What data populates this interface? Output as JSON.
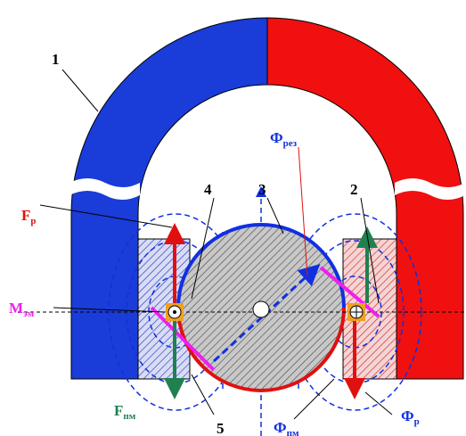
{
  "labels": [
    {
      "main": "1"
    },
    {
      "main": "2"
    },
    {
      "main": "3"
    },
    {
      "main": "4"
    },
    {
      "main": "5"
    },
    {
      "main": "F",
      "sub": "р"
    },
    {
      "main": "Ф",
      "sub": "рез"
    },
    {
      "main": "М",
      "sub": "эм"
    },
    {
      "main": "F",
      "sub": "пм"
    },
    {
      "main": "Ф",
      "sub": "пм"
    },
    {
      "main": "Ф",
      "sub": "р"
    }
  ]
}
